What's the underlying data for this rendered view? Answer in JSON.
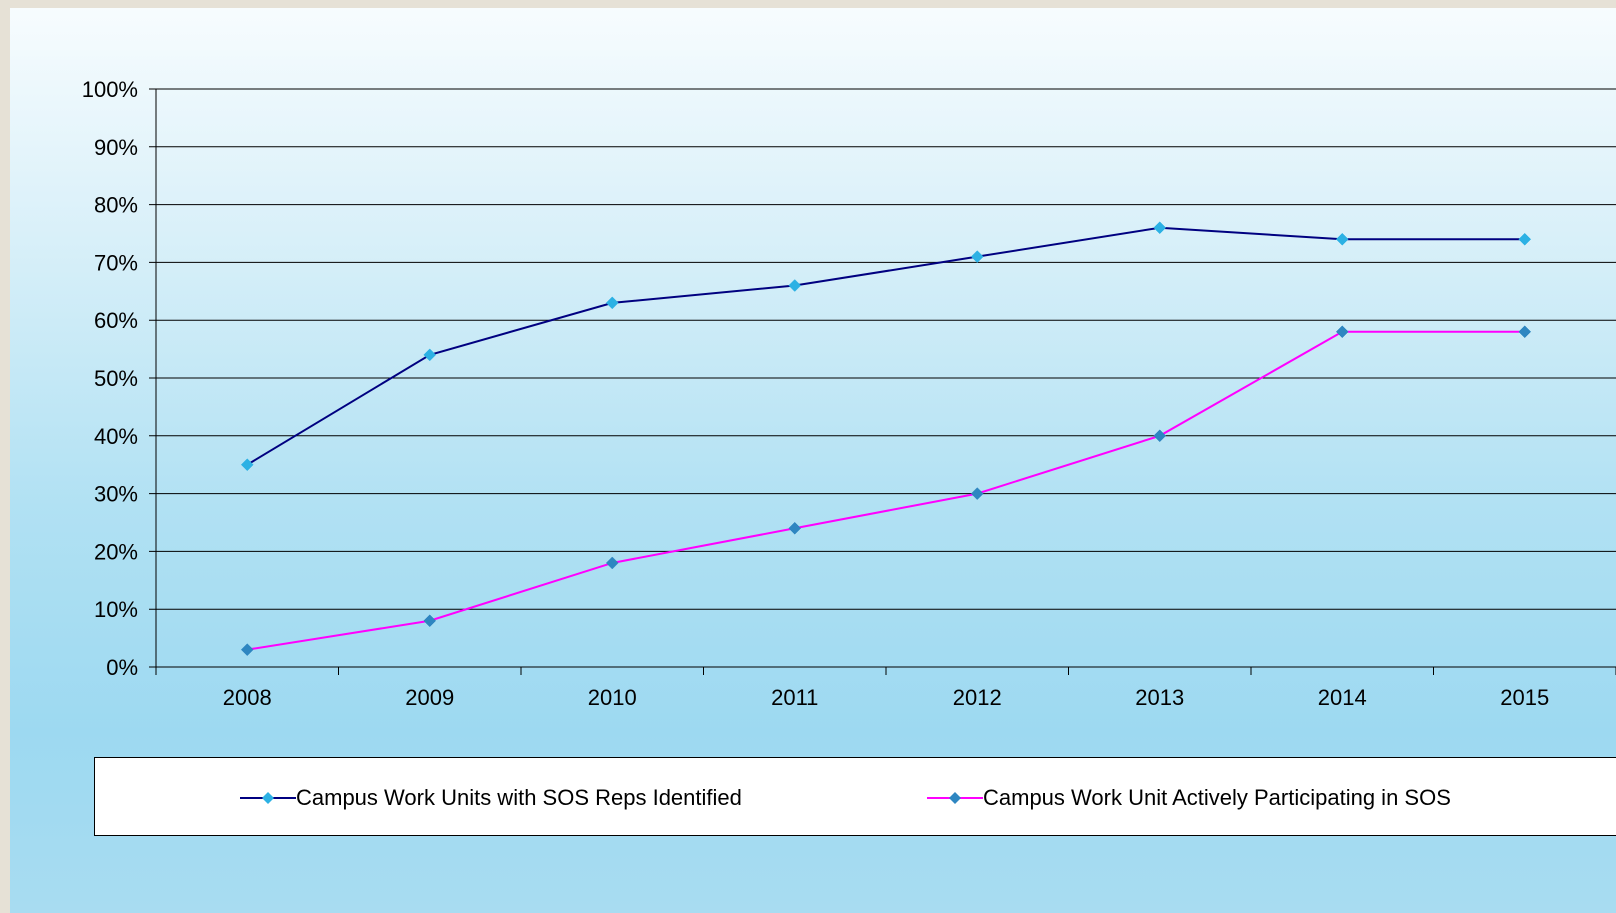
{
  "chart_data": {
    "type": "line",
    "categories": [
      "2008",
      "2009",
      "2010",
      "2011",
      "2012",
      "2013",
      "2014",
      "2015"
    ],
    "ylim": [
      0,
      100
    ],
    "y_ticks": [
      "0%",
      "10%",
      "20%",
      "30%",
      "40%",
      "50%",
      "60%",
      "70%",
      "80%",
      "90%",
      "100%"
    ],
    "y_unit": "%",
    "grid": true,
    "legend_position": "bottom",
    "series": [
      {
        "name": "Campus Work Units with SOS Reps Identified",
        "values": [
          35,
          54,
          63,
          66,
          71,
          76,
          74,
          74
        ],
        "line_color": "#000080",
        "marker_color": "#2cb1e4"
      },
      {
        "name": "Campus Work Unit Actively Participating in SOS",
        "values": [
          3,
          8,
          18,
          24,
          30,
          40,
          58,
          58
        ],
        "line_color": "#ff00ff",
        "marker_color": "#2e86c1"
      }
    ]
  }
}
